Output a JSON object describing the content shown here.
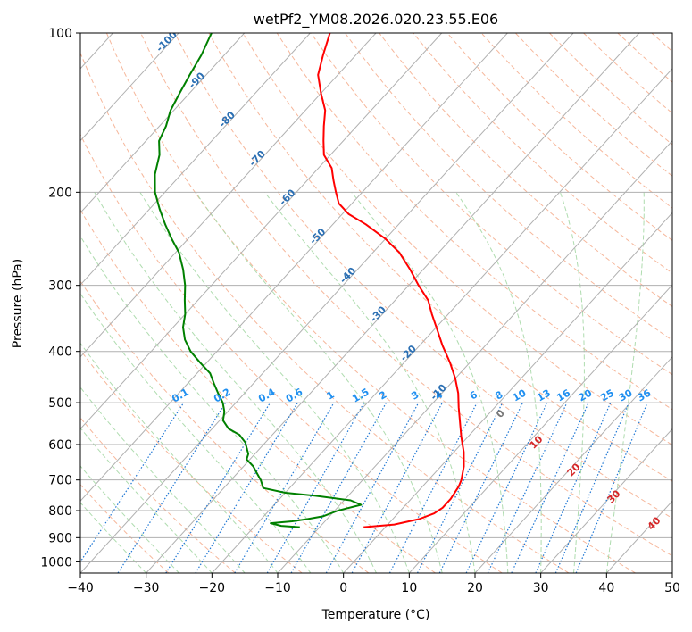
{
  "chart_data": {
    "type": "line",
    "subtype": "skew-t log-p diagram",
    "title": "wetPf2_YM08.2026.020.23.55.E06",
    "xlabel": "Temperature (°C)",
    "ylabel": "Pressure (hPa)",
    "xlim": [
      -40,
      50
    ],
    "ylim": [
      1050,
      100
    ],
    "y_scale": "log",
    "grid": true,
    "x_ticks": [
      "−40",
      "−30",
      "−20",
      "−10",
      "0",
      "10",
      "20",
      "30",
      "40",
      "50"
    ],
    "y_ticks": [
      "100",
      "200",
      "300",
      "400",
      "500",
      "600",
      "700",
      "800",
      "900",
      "1000"
    ],
    "background_lines": {
      "isotherms_color": "#b0b0b0",
      "dry_adiabats_color": "#f4a582",
      "moist_adiabats_color": "#a6d8a6",
      "mixing_ratio_color": "#1f77d4",
      "wet_bulb_color": "#d2b48c"
    },
    "mixing_ratio_labels": [
      "0.1",
      "0.2",
      "0.4",
      "0.6",
      "1",
      "1.5",
      "2",
      "3",
      "4",
      "6",
      "8",
      "10",
      "13",
      "16",
      "20",
      "25",
      "30",
      "36"
    ],
    "isotherm_labels_cold": [
      "-100",
      "-90",
      "-80",
      "-70",
      "-60",
      "-50",
      "-40",
      "-30",
      "-20",
      "-10"
    ],
    "isotherm_labels_warm": [
      "0",
      "10",
      "20",
      "30",
      "40"
    ],
    "series": [
      {
        "name": "",
        "color": "#ff0000",
        "points": [
          [
            -3.3,
            860
          ],
          [
            1,
            850
          ],
          [
            4,
            830
          ],
          [
            5.5,
            810
          ],
          [
            6,
            790
          ],
          [
            6,
            760
          ],
          [
            5.5,
            720
          ],
          [
            5,
            700
          ],
          [
            3.5,
            660
          ],
          [
            1.5,
            620
          ],
          [
            -1,
            580
          ],
          [
            -3.5,
            540
          ],
          [
            -5.5,
            510
          ],
          [
            -7.5,
            480
          ],
          [
            -10,
            450
          ],
          [
            -13,
            420
          ],
          [
            -16.5,
            390
          ],
          [
            -20,
            360
          ],
          [
            -22.5,
            340
          ],
          [
            -25,
            320
          ],
          [
            -28.5,
            300
          ],
          [
            -32,
            280
          ],
          [
            -36,
            260
          ],
          [
            -40,
            245
          ],
          [
            -45,
            230
          ],
          [
            -49,
            220
          ],
          [
            -52,
            210
          ],
          [
            -54,
            200
          ],
          [
            -56,
            190
          ],
          [
            -58,
            180
          ],
          [
            -61,
            170
          ],
          [
            -63,
            160
          ],
          [
            -65,
            150
          ],
          [
            -67,
            140
          ],
          [
            -70,
            130
          ],
          [
            -73,
            120
          ],
          [
            -75,
            110
          ],
          [
            -77,
            100
          ]
        ]
      },
      {
        "name": "",
        "color": "#008000",
        "points": [
          [
            -13,
            860
          ],
          [
            -16,
            855
          ],
          [
            -18,
            845
          ],
          [
            -15,
            838
          ],
          [
            -13,
            830
          ],
          [
            -11,
            820
          ],
          [
            -9.5,
            800
          ],
          [
            -6.8,
            780
          ],
          [
            -9,
            765
          ],
          [
            -15,
            750
          ],
          [
            -20,
            740
          ],
          [
            -24,
            725
          ],
          [
            -25.5,
            700
          ],
          [
            -27,
            680
          ],
          [
            -28.5,
            660
          ],
          [
            -30.5,
            640
          ],
          [
            -31,
            625
          ],
          [
            -32,
            610
          ],
          [
            -33,
            595
          ],
          [
            -34,
            585
          ],
          [
            -35,
            575
          ],
          [
            -37.5,
            560
          ],
          [
            -39.5,
            540
          ],
          [
            -40.5,
            520
          ],
          [
            -42,
            500
          ],
          [
            -44,
            480
          ],
          [
            -46,
            460
          ],
          [
            -48,
            440
          ],
          [
            -51,
            420
          ],
          [
            -54,
            400
          ],
          [
            -56.5,
            380
          ],
          [
            -58.5,
            360
          ],
          [
            -60,
            340
          ],
          [
            -62,
            320
          ],
          [
            -64,
            300
          ],
          [
            -66.5,
            280
          ],
          [
            -69.5,
            260
          ],
          [
            -72.5,
            245
          ],
          [
            -75.5,
            230
          ],
          [
            -78.5,
            215
          ],
          [
            -81.5,
            200
          ],
          [
            -84,
            185
          ],
          [
            -86,
            170
          ],
          [
            -88,
            160
          ],
          [
            -89,
            150
          ],
          [
            -90.5,
            140
          ],
          [
            -91.5,
            130
          ],
          [
            -92.5,
            120
          ],
          [
            -93.5,
            110
          ],
          [
            -95,
            100
          ]
        ]
      }
    ]
  }
}
